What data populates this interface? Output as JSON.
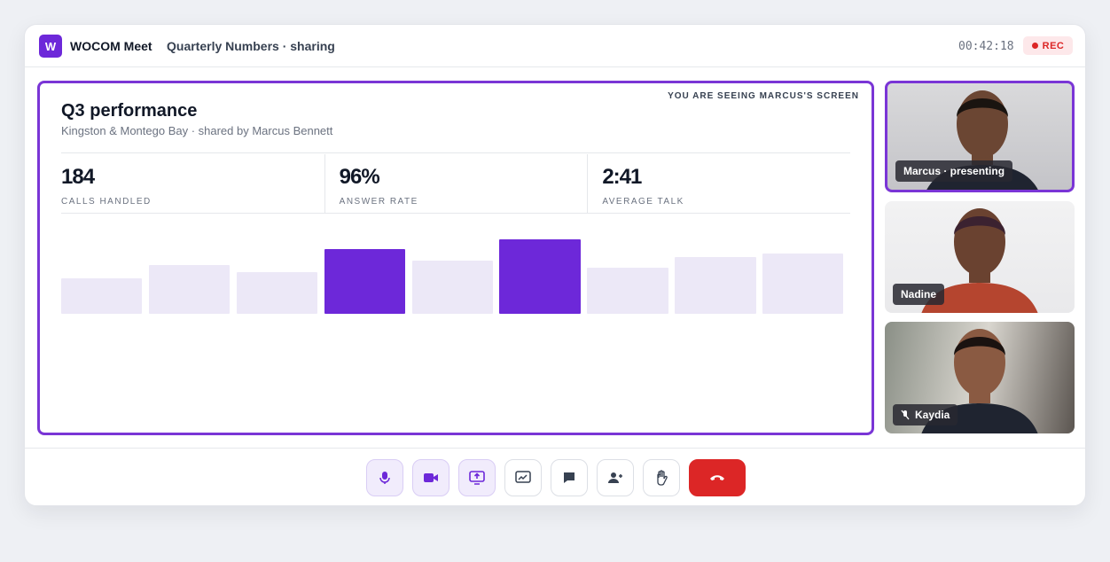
{
  "header": {
    "logo": "W",
    "app_name": "WOCOM Meet",
    "meeting_title": "Quarterly Numbers · sharing",
    "timer": "00:42:18",
    "rec_label": "REC"
  },
  "share": {
    "notice": "YOU ARE SEEING MARCUS'S SCREEN",
    "title": "Q3 performance",
    "subtitle": "Kingston & Montego Bay · shared by Marcus Bennett",
    "stats": [
      {
        "value": "184",
        "label": "CALLS HANDLED"
      },
      {
        "value": "96%",
        "label": "ANSWER RATE"
      },
      {
        "value": "2:41",
        "label": "AVERAGE TALK"
      }
    ],
    "chart": {
      "type": "bar",
      "values": [
        40,
        55,
        47,
        73,
        60,
        84,
        52,
        64,
        68
      ],
      "highlighted": [
        3,
        5
      ],
      "color": "#ece8f7",
      "highlight_color": "#6d28d9"
    }
  },
  "participants": [
    {
      "name": "Marcus · presenting",
      "presenting": true,
      "muted": false
    },
    {
      "name": "Nadine",
      "presenting": false,
      "muted": false
    },
    {
      "name": "Kaydia",
      "presenting": false,
      "muted": true
    }
  ]
}
